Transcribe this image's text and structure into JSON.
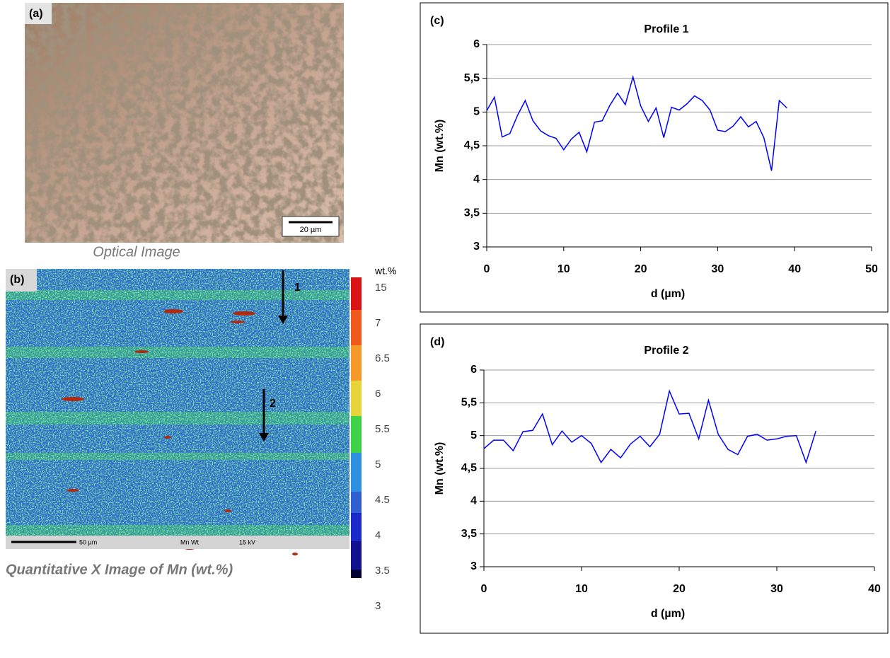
{
  "panels": {
    "a": {
      "label": "(a)",
      "scale_bar": "20 µm",
      "caption": "Optical  Image"
    },
    "b": {
      "label": "(b)",
      "caption": "Quantitative X Image of Mn  (wt.%)",
      "colorbar_title": "wt.%",
      "colorbar_labels": [
        "15",
        "7",
        "6.5",
        "6",
        "5.5",
        "5",
        "4.5",
        "4",
        "3.5",
        "3"
      ],
      "arrows": [
        "1",
        "2"
      ],
      "footer": [
        "50 µm",
        "Mn Wt",
        "15 kV"
      ]
    }
  },
  "chart_data": [
    {
      "type": "line",
      "panel_label": "(c)",
      "title": "Profile 1",
      "x_label": "d (µm)",
      "y_label": "Mn (wt.%)",
      "x": [
        0,
        1,
        2,
        3,
        4,
        5,
        6,
        7,
        8,
        9,
        10,
        11,
        12,
        13,
        14,
        15,
        16,
        17,
        18,
        19,
        20,
        21,
        22,
        23,
        24,
        25,
        26,
        27,
        28,
        29,
        30,
        31,
        32,
        33,
        34,
        35,
        36,
        37,
        38,
        39
      ],
      "series": [
        {
          "color": "#0000ff",
          "values": [
            5.02,
            5.22,
            4.63,
            4.68,
            4.95,
            5.17,
            4.87,
            4.72,
            4.65,
            4.61,
            4.44,
            4.6,
            4.7,
            4.41,
            4.85,
            4.87,
            5.1,
            5.28,
            5.11,
            5.52,
            5.09,
            4.86,
            5.06,
            4.62,
            5.07,
            5.03,
            5.12,
            5.24,
            5.17,
            5.03,
            4.73,
            4.71,
            4.79,
            4.93,
            4.78,
            4.86,
            4.62,
            4.13,
            5.17,
            5.06
          ]
        }
      ],
      "xlim": [
        0,
        50
      ],
      "ylim": [
        3,
        6
      ],
      "xticks": [
        0,
        10,
        20,
        30,
        40,
        50
      ],
      "yticks": [
        3,
        {
          "value": 3.5,
          "label": "3,5"
        },
        4,
        {
          "value": 4.5,
          "label": "4,5"
        },
        5,
        {
          "value": 5.5,
          "label": "5,5"
        },
        6
      ],
      "grid": true
    },
    {
      "type": "line",
      "panel_label": "(d)",
      "title": "Profile 2",
      "x_label": "d (µm)",
      "y_label": "Mn (wt.%)",
      "x": [
        0,
        1,
        2,
        3,
        4,
        5,
        6,
        7,
        8,
        9,
        10,
        11,
        12,
        13,
        14,
        15,
        16,
        17,
        18,
        19,
        20,
        21,
        22,
        23,
        24,
        25,
        26,
        27,
        28,
        29,
        30,
        31,
        32,
        33,
        34
      ],
      "series": [
        {
          "color": "#0000ff",
          "values": [
            4.8,
            4.93,
            4.93,
            4.77,
            5.06,
            5.08,
            5.33,
            4.86,
            5.07,
            4.9,
            5.0,
            4.88,
            4.59,
            4.79,
            4.66,
            4.87,
            4.99,
            4.83,
            5.02,
            5.68,
            5.33,
            5.34,
            4.95,
            5.54,
            5.02,
            4.79,
            4.71,
            4.99,
            5.02,
            4.93,
            4.95,
            4.99,
            5.0,
            4.59,
            5.07
          ]
        }
      ],
      "xlim": [
        0,
        40
      ],
      "ylim": [
        3,
        6
      ],
      "xticks": [
        0,
        10,
        20,
        30,
        40
      ],
      "yticks": [
        3,
        {
          "value": 3.5,
          "label": "3,5"
        },
        4,
        {
          "value": 4.5,
          "label": "4,5"
        },
        5,
        {
          "value": 5.5,
          "label": "5,5"
        },
        6
      ],
      "grid": true
    }
  ]
}
